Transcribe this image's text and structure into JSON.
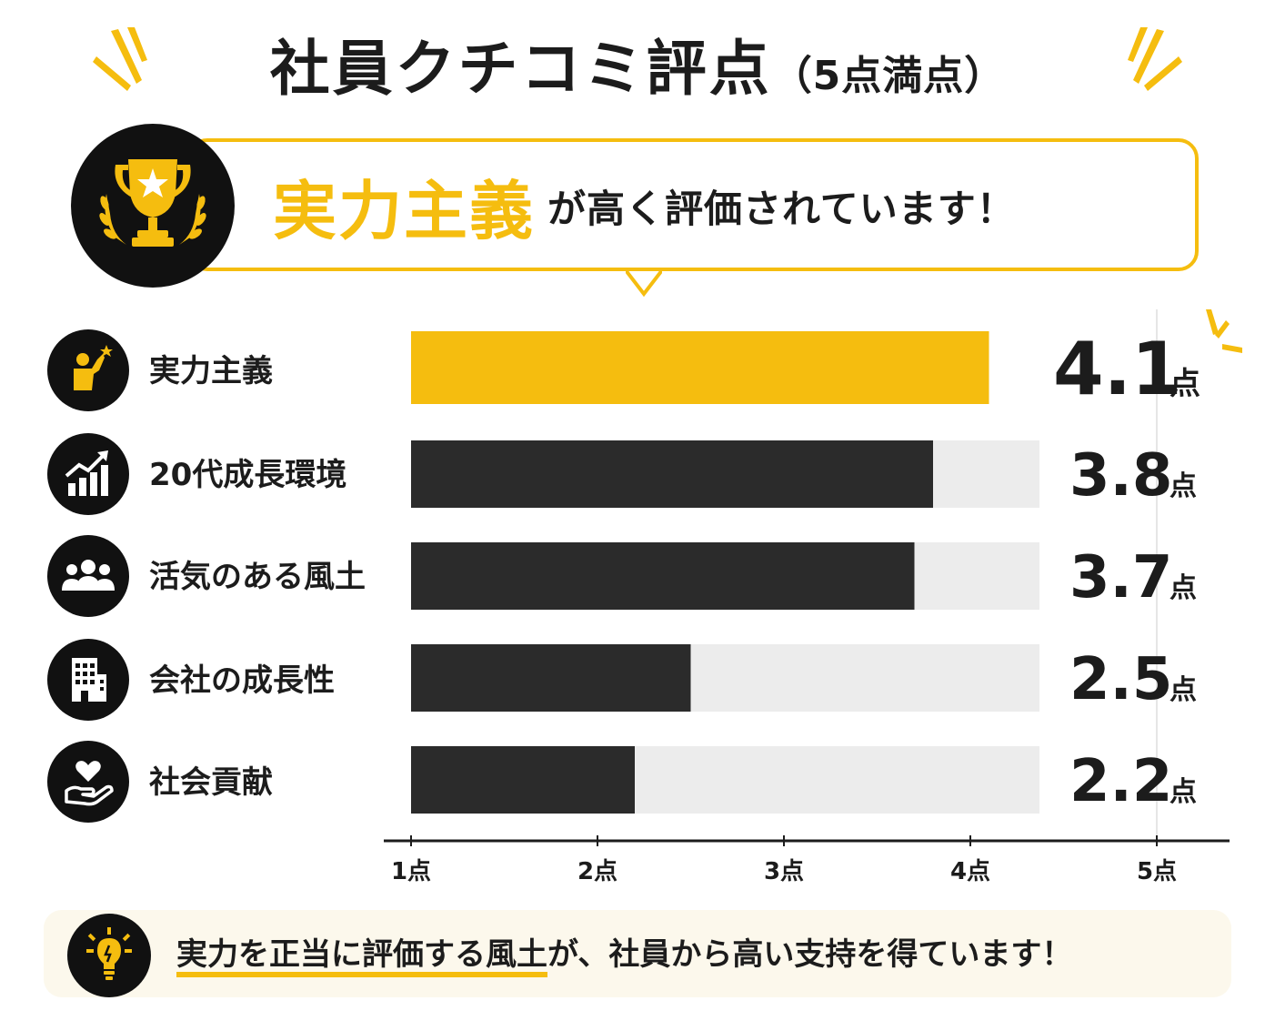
{
  "title": {
    "main": "社員クチコミ評点",
    "sub": "（5点満点）"
  },
  "banner": {
    "highlight": "実力主義",
    "rest": "が高く評価されています！"
  },
  "icons": {
    "trophy": "trophy-icon",
    "rows": [
      "raise-hand-icon",
      "growth-chart-icon",
      "team-icon",
      "building-icon",
      "heart-hand-icon"
    ],
    "footer": "lightbulb-icon"
  },
  "rows": [
    {
      "label": "実力主義",
      "score": "4.1",
      "unit": "点"
    },
    {
      "label": "20代成長環境",
      "score": "3.8",
      "unit": "点"
    },
    {
      "label": "活気のある風土",
      "score": "3.7",
      "unit": "点"
    },
    {
      "label": "会社の成長性",
      "score": "2.5",
      "unit": "点"
    },
    {
      "label": "社会貢献",
      "score": "2.2",
      "unit": "点"
    }
  ],
  "chart_data": {
    "type": "bar",
    "orientation": "horizontal",
    "categories": [
      "実力主義",
      "20代成長環境",
      "活気のある風土",
      "会社の成長性",
      "社会貢献"
    ],
    "values": [
      4.1,
      3.8,
      3.7,
      2.5,
      2.2
    ],
    "xlim": [
      1,
      5
    ],
    "x_ticks": [
      "1点",
      "2点",
      "3点",
      "4点",
      "5点"
    ],
    "title": "社員クチコミ評点（5点満点）",
    "highlight_category": "実力主義",
    "colors": {
      "highlight": "#f5bd0f",
      "bar": "#2b2b2b",
      "track": "#ececec",
      "axis": "#1c1c1c"
    }
  },
  "footer": {
    "highlight": "実力を正当に評価する風土",
    "rest": "が、社員から高い支持を得ています！"
  },
  "colors": {
    "accent": "#f5bd0f",
    "dark": "#111111",
    "footer_bg": "#fcf8ec"
  }
}
